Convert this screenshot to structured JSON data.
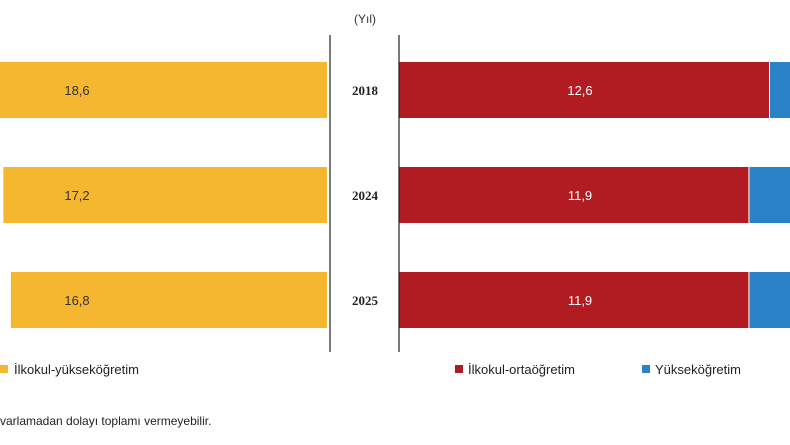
{
  "chart_data": [
    {
      "type": "bar",
      "orientation": "horizontal",
      "categories": [
        "2018",
        "2024",
        "2025"
      ],
      "series": [
        {
          "name": "İlkokul-yükseköğretim",
          "values": [
            18.6,
            17.2,
            16.8
          ],
          "color": "#f5b72f"
        }
      ],
      "xlim": [
        0,
        18.6
      ]
    },
    {
      "type": "bar",
      "orientation": "horizontal",
      "stacked": true,
      "categories": [
        "2018",
        "2024",
        "2025"
      ],
      "series": [
        {
          "name": "İlkokul-ortaöğretim",
          "values": [
            12.6,
            11.9,
            11.9
          ],
          "color": "#b01c21"
        },
        {
          "name": "Yükseköğretim",
          "values": [
            null,
            null,
            null
          ],
          "color": "#2b83c7"
        }
      ],
      "xlim": [
        0,
        12.6
      ]
    }
  ],
  "axis_unit": "(Yıl)",
  "legend_left": {
    "label": "İlkokul-yükseköğretim",
    "color": "#f5b72f"
  },
  "legend_right": [
    {
      "label": "İlkokul-ortaöğretim",
      "color": "#b01c21"
    },
    {
      "label": "Yükseköğretim",
      "color": "#2b83c7"
    }
  ],
  "footnote": "varlamadan dolayı toplamı vermeyebilir."
}
